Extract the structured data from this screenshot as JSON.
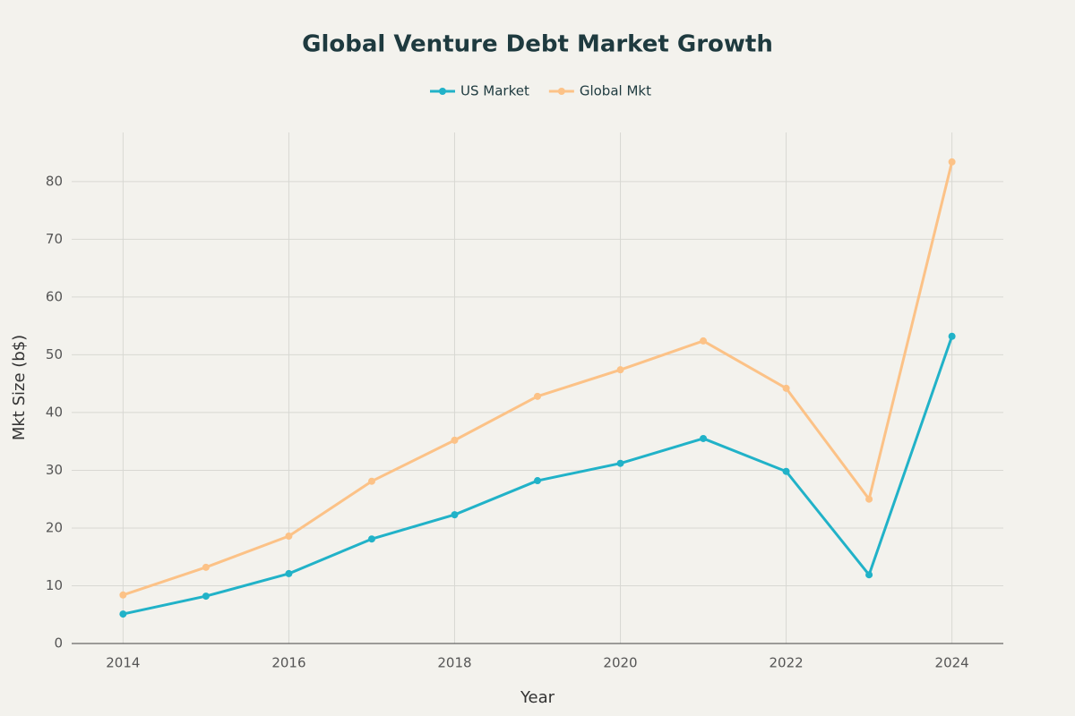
{
  "chart_data": {
    "type": "line",
    "title": "Global Venture Debt Market Growth",
    "x_label": "Year",
    "y_label": "Mkt Size (b$)",
    "x": [
      2014,
      2015,
      2016,
      2017,
      2018,
      2019,
      2020,
      2021,
      2022,
      2023,
      2024
    ],
    "series": [
      {
        "name": "US Market",
        "color": "#21b2c8",
        "values": [
          5.1,
          8.2,
          12.1,
          18.1,
          22.3,
          28.2,
          31.2,
          35.5,
          29.8,
          11.9,
          53.2
        ]
      },
      {
        "name": "Global Mkt",
        "color": "#fcc287",
        "values": [
          8.4,
          13.2,
          18.6,
          28.1,
          35.2,
          42.8,
          47.4,
          52.4,
          44.2,
          25.0,
          83.4
        ]
      }
    ],
    "xlim": [
      2013.38,
      2024.62
    ],
    "xticks": [
      2014,
      2016,
      2018,
      2020,
      2022,
      2024
    ],
    "ylim": [
      0,
      88.5
    ],
    "yticks": [
      0,
      10,
      20,
      30,
      40,
      50,
      60,
      70,
      80
    ],
    "grid": true
  }
}
